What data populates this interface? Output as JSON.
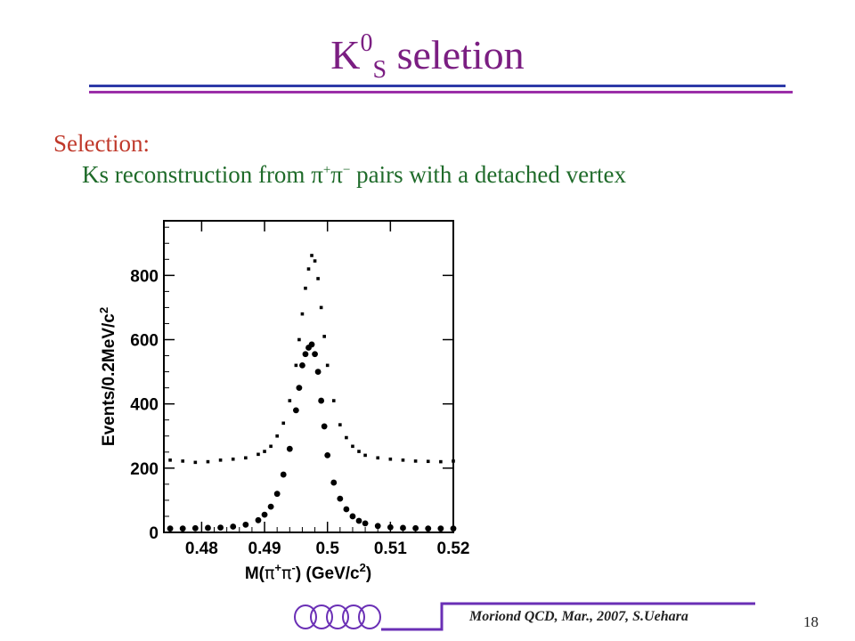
{
  "slide": {
    "title_main": "K",
    "title_sup": "0",
    "title_sub": "S",
    "title_rest": " seletion",
    "heading": "Selection:",
    "line_text_1": "Ks reconstruction from ",
    "pion_symbol": "π",
    "pion_plus": "+",
    "pion_minus": "−",
    "line_text_2": " pairs with a detached vertex",
    "footer": "Moriond QCD, Mar., 2007, S.Uehara",
    "page_number": "18",
    "colors": {
      "title": "#7b1e82",
      "heading": "#c0392b",
      "body": "#1f6b2a",
      "rule_blue": "#2e3aa8",
      "rule_purple": "#9b2ea8"
    }
  },
  "chart_data": {
    "type": "scatter",
    "xlabel": "M(π+π-) (GeV/c2)",
    "ylabel": "Events/0.2MeV/c2",
    "xlim": [
      0.474,
      0.52
    ],
    "ylim": [
      0,
      970
    ],
    "xticks": [
      "0.48",
      "0.49",
      "0.5",
      "0.51",
      "0.52"
    ],
    "xtick_values": [
      0.48,
      0.49,
      0.5,
      0.51,
      0.52
    ],
    "yticks": [
      "0",
      "200",
      "400",
      "600",
      "800"
    ],
    "ytick_values": [
      0,
      200,
      400,
      600,
      800
    ],
    "grid": false,
    "legend": "none",
    "series": [
      {
        "style": "open-dots",
        "x": [
          0.475,
          0.477,
          0.479,
          0.481,
          0.483,
          0.485,
          0.487,
          0.489,
          0.49,
          0.491,
          0.492,
          0.493,
          0.494,
          0.495,
          0.4955,
          0.496,
          0.4965,
          0.497,
          0.4975,
          0.498,
          0.4985,
          0.499,
          0.4995,
          0.5,
          0.501,
          0.502,
          0.503,
          0.504,
          0.505,
          0.506,
          0.508,
          0.51,
          0.512,
          0.514,
          0.516,
          0.518,
          0.52
        ],
        "y": [
          225,
          222,
          218,
          220,
          225,
          228,
          232,
          243,
          252,
          268,
          300,
          340,
          410,
          520,
          600,
          680,
          760,
          820,
          862,
          845,
          790,
          700,
          610,
          520,
          410,
          335,
          295,
          268,
          252,
          240,
          232,
          228,
          225,
          222,
          221,
          220,
          222
        ]
      },
      {
        "style": "filled-dots",
        "x": [
          0.475,
          0.477,
          0.479,
          0.481,
          0.483,
          0.485,
          0.487,
          0.489,
          0.49,
          0.491,
          0.492,
          0.493,
          0.494,
          0.495,
          0.4955,
          0.496,
          0.4965,
          0.497,
          0.4975,
          0.498,
          0.4985,
          0.499,
          0.4995,
          0.5,
          0.501,
          0.502,
          0.503,
          0.504,
          0.505,
          0.506,
          0.508,
          0.51,
          0.512,
          0.514,
          0.516,
          0.518,
          0.52
        ],
        "y": [
          12,
          12,
          13,
          14,
          15,
          18,
          24,
          38,
          55,
          80,
          120,
          180,
          260,
          380,
          450,
          520,
          555,
          575,
          585,
          555,
          500,
          410,
          330,
          240,
          155,
          105,
          72,
          50,
          36,
          28,
          20,
          16,
          14,
          13,
          12,
          12,
          12
        ]
      }
    ]
  }
}
